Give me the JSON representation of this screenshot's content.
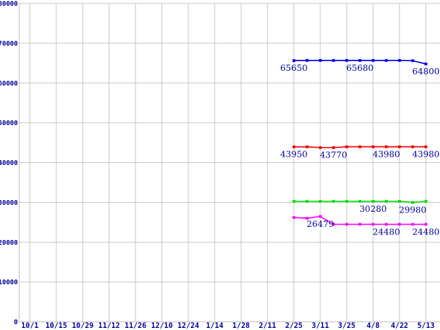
{
  "chart_data": {
    "type": "line",
    "title": "",
    "xlabel": "",
    "ylabel": "",
    "grid": true,
    "legend": "none",
    "ylim": [
      0,
      80000
    ],
    "y_ticks": [
      0,
      10000,
      20000,
      30000,
      40000,
      50000,
      60000,
      70000,
      80000
    ],
    "y_tick_labels": [
      "0",
      "10000",
      "20000",
      "30000",
      "40000",
      "50000",
      "60000",
      "70000",
      "80000"
    ],
    "x_tick_labels": [
      "10/1",
      "10/15",
      "10/29",
      "11/12",
      "11/26",
      "12/10",
      "12/24",
      "1/14",
      "1/28",
      "2/11",
      "2/25",
      "3/11",
      "3/25",
      "4/8",
      "4/22",
      "5/13"
    ],
    "points_span": {
      "start_tick_index": 10,
      "end_tick_index": 15,
      "points_per_series": 11,
      "note_visible_range": "data plotted only from 2/25 to 5/13"
    },
    "series": [
      {
        "name": "blue",
        "color": "#0000EE",
        "values": [
          65650,
          65680,
          65680,
          65680,
          65680,
          65680,
          65680,
          65680,
          65680,
          65600,
          64800
        ],
        "point_labels": [
          {
            "index": 0,
            "text": "65650"
          },
          {
            "index": 5,
            "text": "65680"
          },
          {
            "index": 10,
            "text": "64800"
          }
        ]
      },
      {
        "name": "red",
        "color": "#EE0000",
        "values": [
          43950,
          43950,
          43770,
          43770,
          43980,
          43980,
          43980,
          43980,
          43980,
          43980,
          43980
        ],
        "point_labels": [
          {
            "index": 0,
            "text": "43950"
          },
          {
            "index": 3,
            "text": "43770"
          },
          {
            "index": 7,
            "text": "43980"
          },
          {
            "index": 10,
            "text": "43980"
          }
        ]
      },
      {
        "name": "green",
        "color": "#00DD00",
        "values": [
          30280,
          30280,
          30280,
          30280,
          30280,
          30280,
          30280,
          30280,
          30280,
          29980,
          30280
        ],
        "point_labels": [
          {
            "index": 6,
            "text": "30280"
          },
          {
            "index": 9,
            "text": "29980"
          }
        ]
      },
      {
        "name": "magenta",
        "color": "#FF00FF",
        "values": [
          26200,
          26000,
          26479,
          24480,
          24480,
          24480,
          24480,
          24480,
          24480,
          24480,
          24480
        ],
        "point_labels": [
          {
            "index": 2,
            "text": "26479"
          },
          {
            "index": 7,
            "text": "24480"
          },
          {
            "index": 10,
            "text": "24480"
          }
        ]
      }
    ],
    "colors": {
      "background": "#FFFFFF",
      "grid": "#C4C4C4",
      "axis": "#B8B8B8",
      "tick_text": "#000099",
      "point_label_text": "#000099"
    }
  }
}
